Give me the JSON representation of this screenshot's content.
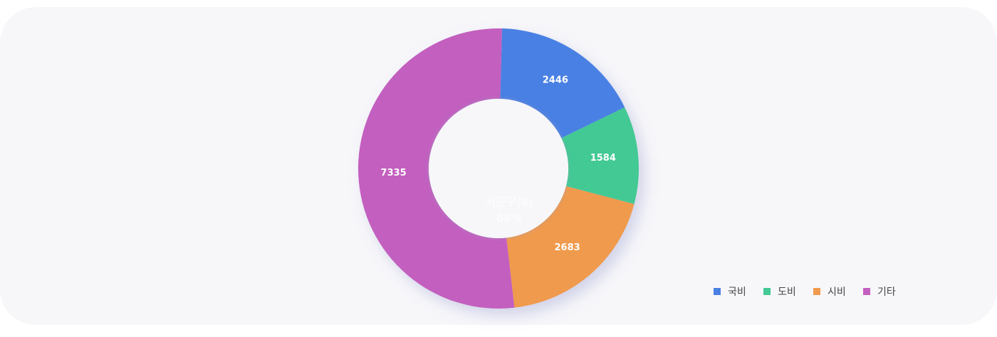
{
  "chart_data": {
    "type": "pie",
    "categories": [
      "국비",
      "도비",
      "시비",
      "기타"
    ],
    "values": [
      2446,
      1584,
      2683,
      7335
    ],
    "colors": [
      "#4a80e3",
      "#43c994",
      "#f09a4e",
      "#c35fbf"
    ],
    "center_label": "시군구(8)",
    "center_value": "88%",
    "legend": "bottom-right"
  }
}
